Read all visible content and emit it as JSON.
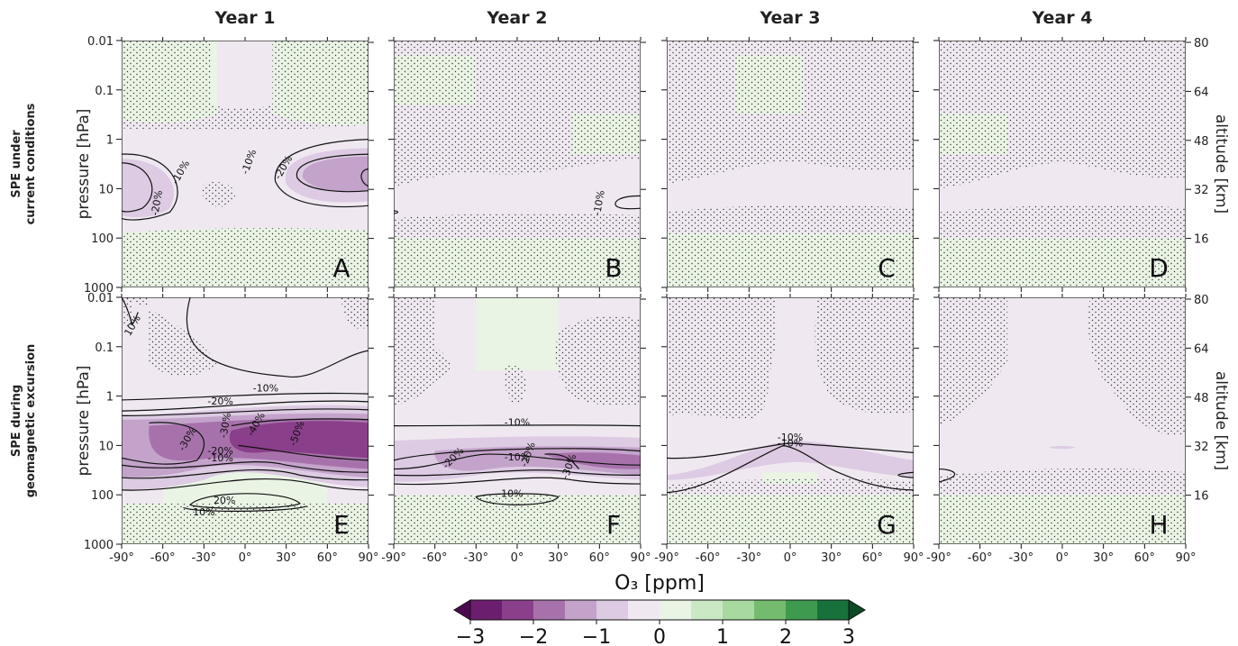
{
  "chart_data": {
    "type": "heatmap",
    "description_level": "Zonal-mean ozone anomaly contour panels (latitude vs pressure), 2 rows x 4 columns",
    "columns": [
      "Year 1",
      "Year 2",
      "Year 3",
      "Year 4"
    ],
    "rows": [
      "SPE under\ncurrent conditions",
      "SPE during\ngeomagnetic excursion"
    ],
    "row_labels": [
      "SPE under",
      "current conditions",
      "SPE during",
      "geomagnetic excursion"
    ],
    "ylabel_left": "pressure [hPa]",
    "ylabel_right": "altitude [km]",
    "x_ticks": [
      "-90°",
      "-60°",
      "-30°",
      "0°",
      "30°",
      "60°",
      "90°"
    ],
    "x_tick_values": [
      -90,
      -60,
      -30,
      0,
      30,
      60,
      90
    ],
    "y_ticks_pressure": [
      "0.01",
      "0.1",
      "1",
      "10",
      "100",
      "1000"
    ],
    "y_tick_pressure_values": [
      0.01,
      0.1,
      1,
      10,
      100,
      1000
    ],
    "y_ticks_altitude": [
      "80",
      "64",
      "48",
      "32",
      "16"
    ],
    "y_tick_altitude_values": [
      80,
      64,
      48,
      32,
      16
    ],
    "xlim": [
      -90,
      90
    ],
    "ylim_pressure": [
      1000,
      0.01
    ],
    "y_scale": "log",
    "colorbar": {
      "label": "O₃ [ppm]",
      "ticks": [
        "−3",
        "−2",
        "−1",
        "0",
        "1",
        "2",
        "3"
      ],
      "tick_values": [
        -3,
        -2,
        -1,
        0,
        1,
        2,
        3
      ],
      "levels": [
        -3,
        -2.5,
        -2,
        -1.5,
        -1,
        -0.5,
        0,
        0.5,
        1,
        1.5,
        2,
        2.5,
        3
      ],
      "colors": [
        "#6b1d6e",
        "#8a3f8a",
        "#a772ab",
        "#c4a3cb",
        "#dccbe2",
        "#efe8f1",
        "#e9f4e5",
        "#cbe8c4",
        "#a8d9a0",
        "#74bb6f",
        "#3e9a4e",
        "#17713a"
      ],
      "extend": "both",
      "extend_min_color": "#4b0a50",
      "extend_max_color": "#0b4a24"
    },
    "panels": [
      {
        "letter": "A",
        "row": 0,
        "col": 0,
        "min_anomaly_pct": -20,
        "contour_labels": [
          "-20%",
          "-10%",
          "-10%",
          "-20%"
        ]
      },
      {
        "letter": "B",
        "row": 0,
        "col": 1,
        "min_anomaly_pct": -10,
        "contour_labels": [
          "-10%"
        ]
      },
      {
        "letter": "C",
        "row": 0,
        "col": 2,
        "min_anomaly_pct": 0,
        "contour_labels": []
      },
      {
        "letter": "D",
        "row": 0,
        "col": 3,
        "min_anomaly_pct": 0,
        "contour_labels": []
      },
      {
        "letter": "E",
        "row": 1,
        "col": 0,
        "min_anomaly_pct": -50,
        "contour_labels": [
          "10%",
          "-10%",
          "-20%",
          "-30%",
          "-30%",
          "-40%",
          "-50%",
          "-20%",
          "-10%",
          "20%",
          "10%"
        ]
      },
      {
        "letter": "F",
        "row": 1,
        "col": 1,
        "min_anomaly_pct": -30,
        "contour_labels": [
          "-10%",
          "-20%",
          "-10%",
          "-20%",
          "-30%",
          "-10%"
        ]
      },
      {
        "letter": "G",
        "row": 1,
        "col": 2,
        "min_anomaly_pct": -10,
        "contour_labels": [
          "-10%",
          "-10%"
        ]
      },
      {
        "letter": "H",
        "row": 1,
        "col": 3,
        "min_anomaly_pct": 0,
        "contour_labels": []
      }
    ],
    "stippling": "dotted hatching marks statistically non-significant regions"
  }
}
